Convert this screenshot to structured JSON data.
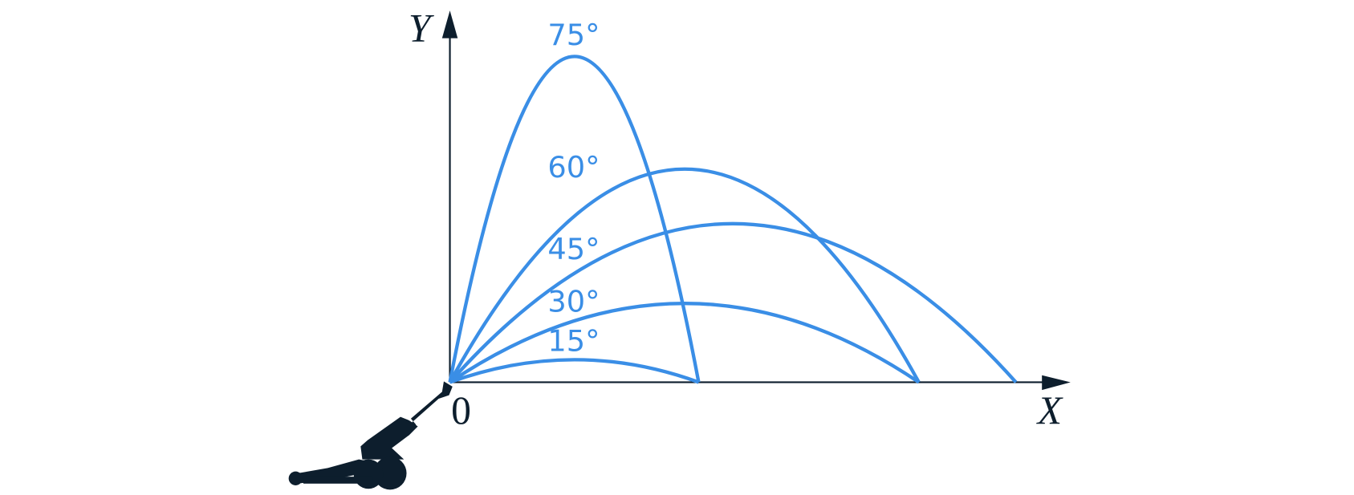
{
  "axes": {
    "y_label": "Y",
    "x_label": "X",
    "origin_label": "0"
  },
  "trajectories": [
    {
      "label": "75°"
    },
    {
      "label": "60°"
    },
    {
      "label": "45°"
    },
    {
      "label": "30°"
    },
    {
      "label": "15°"
    }
  ]
}
